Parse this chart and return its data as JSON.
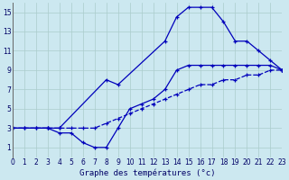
{
  "title": "Graphe des températures (°c)",
  "background_color": "#cce8f0",
  "grid_color": "#aacccc",
  "line_color": "#0000bb",
  "xlim": [
    0,
    23
  ],
  "ylim": [
    0,
    16
  ],
  "xticks": [
    0,
    1,
    2,
    3,
    4,
    5,
    6,
    7,
    8,
    9,
    10,
    11,
    12,
    13,
    14,
    15,
    16,
    17,
    18,
    19,
    20,
    21,
    22,
    23
  ],
  "yticks": [
    1,
    3,
    5,
    7,
    9,
    11,
    13,
    15
  ],
  "series": [
    {
      "linestyle": "--",
      "x": [
        0,
        1,
        2,
        3,
        4,
        5,
        6,
        7,
        8,
        9,
        10,
        11,
        12,
        13,
        14,
        15,
        16,
        17,
        18,
        19,
        20,
        21,
        22,
        23
      ],
      "y": [
        3,
        3,
        3,
        3,
        3,
        3,
        3,
        3,
        3.5,
        4,
        4.5,
        5,
        5.5,
        6,
        6.5,
        7,
        7.5,
        7.5,
        8,
        8,
        8.5,
        8.5,
        9,
        9
      ]
    },
    {
      "linestyle": "-",
      "x": [
        0,
        1,
        2,
        3,
        4,
        5,
        6,
        7,
        8,
        9,
        10,
        11,
        12,
        13,
        14,
        15,
        16,
        17,
        18,
        19,
        20,
        21,
        22,
        23
      ],
      "y": [
        3,
        3,
        3,
        3,
        2.5,
        2.5,
        1.5,
        1,
        1,
        3,
        5,
        5.5,
        6,
        7,
        9,
        9.5,
        9.5,
        9.5,
        9.5,
        9.5,
        9.5,
        9.5,
        9.5,
        9
      ]
    },
    {
      "linestyle": "-",
      "x": [
        0,
        3,
        4,
        8,
        9,
        13,
        14,
        15,
        16,
        17,
        18,
        19,
        20,
        21,
        22,
        23
      ],
      "y": [
        3,
        3,
        3,
        8,
        7.5,
        12,
        14.5,
        15.5,
        15.5,
        15.5,
        14,
        12,
        12,
        11,
        10,
        9
      ]
    }
  ]
}
